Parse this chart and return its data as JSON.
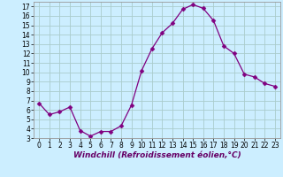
{
  "x": [
    0,
    1,
    2,
    3,
    4,
    5,
    6,
    7,
    8,
    9,
    10,
    11,
    12,
    13,
    14,
    15,
    16,
    17,
    18,
    19,
    20,
    21,
    22,
    23
  ],
  "y": [
    6.7,
    5.5,
    5.8,
    6.3,
    3.8,
    3.2,
    3.7,
    3.7,
    4.3,
    6.5,
    10.2,
    12.5,
    14.2,
    15.2,
    16.7,
    17.2,
    16.8,
    15.5,
    12.8,
    12.0,
    9.8,
    9.5,
    8.8,
    8.5
  ],
  "line_color": "#800080",
  "marker": "D",
  "marker_size": 2.5,
  "bg_color": "#cceeff",
  "grid_color": "#aacccc",
  "xlabel": "Windchill (Refroidissement éolien,°C)",
  "ylabel": "",
  "ylim": [
    3,
    17.5
  ],
  "xlim": [
    -0.5,
    23.5
  ],
  "yticks": [
    3,
    4,
    5,
    6,
    7,
    8,
    9,
    10,
    11,
    12,
    13,
    14,
    15,
    16,
    17
  ],
  "xticks": [
    0,
    1,
    2,
    3,
    4,
    5,
    6,
    7,
    8,
    9,
    10,
    11,
    12,
    13,
    14,
    15,
    16,
    17,
    18,
    19,
    20,
    21,
    22,
    23
  ],
  "tick_fontsize": 5.5,
  "xlabel_fontsize": 6.5,
  "line_width": 0.9
}
